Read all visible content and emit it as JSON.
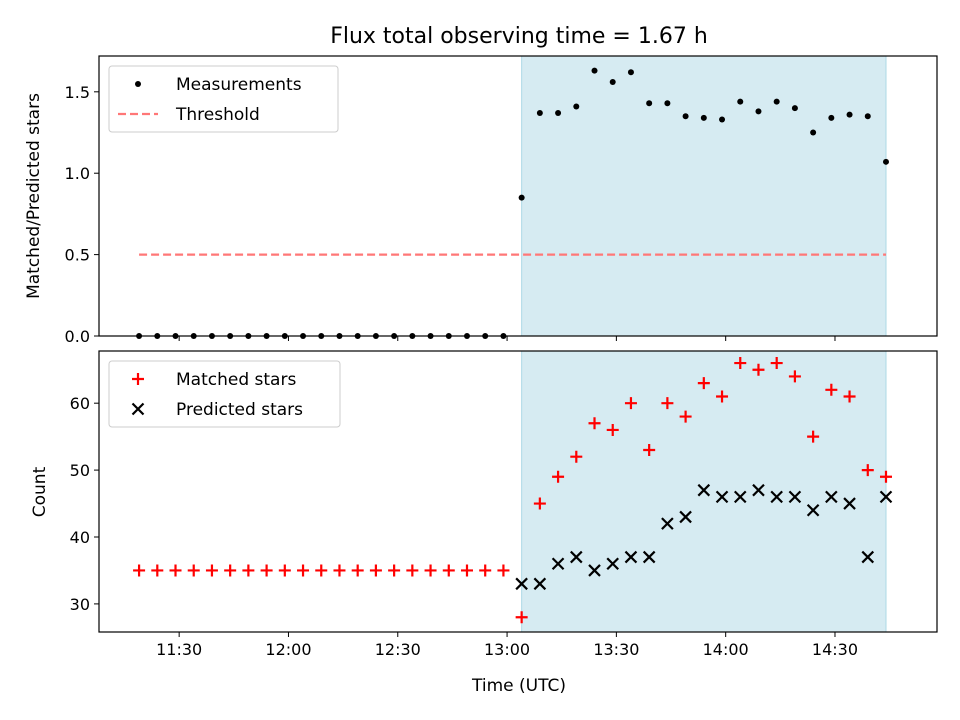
{
  "chart_data": [
    {
      "type": "scatter",
      "title": "Flux total observing time = 1.67 h",
      "xlabel": "",
      "ylabel": "Matched/Predicted stars",
      "x_ticks": [
        "11:30",
        "12:00",
        "12:30",
        "13:00",
        "13:30",
        "14:00",
        "14:30"
      ],
      "x_range": [
        "11:08",
        "14:58"
      ],
      "ylim": [
        0,
        1.72
      ],
      "y_ticks": [
        "0.0",
        "0.5",
        "1.0",
        "1.5"
      ],
      "legend_position": "top-left",
      "highlight_span": {
        "start": "13:04",
        "end": "14:44",
        "color": "#add8e6"
      },
      "x": [
        "11:19",
        "11:24",
        "11:29",
        "11:34",
        "11:39",
        "11:44",
        "11:49",
        "11:54",
        "11:59",
        "12:04",
        "12:09",
        "12:14",
        "12:19",
        "12:24",
        "12:29",
        "12:34",
        "12:39",
        "12:44",
        "12:49",
        "12:54",
        "12:59",
        "13:04",
        "13:09",
        "13:14",
        "13:19",
        "13:24",
        "13:29",
        "13:34",
        "13:39",
        "13:44",
        "13:49",
        "13:54",
        "13:59",
        "14:04",
        "14:09",
        "14:14",
        "14:19",
        "14:24",
        "14:29",
        "14:34",
        "14:39",
        "14:44"
      ],
      "series": [
        {
          "name": "Measurements",
          "marker": "dot",
          "color": "#000000",
          "values": [
            0,
            0,
            0,
            0,
            0,
            0,
            0,
            0,
            0,
            0,
            0,
            0,
            0,
            0,
            0,
            0,
            0,
            0,
            0,
            0,
            0,
            0.85,
            1.37,
            1.37,
            1.41,
            1.63,
            1.56,
            1.62,
            1.43,
            1.43,
            1.35,
            1.34,
            1.33,
            1.44,
            1.38,
            1.44,
            1.4,
            1.25,
            1.34,
            1.36,
            1.35,
            1.07
          ]
        },
        {
          "name": "Threshold",
          "marker": "dashed-line",
          "color": "#ff7777",
          "line_x": [
            "11:19",
            "14:44"
          ],
          "value": 0.5
        }
      ]
    },
    {
      "type": "scatter",
      "title": "",
      "xlabel": "Time (UTC)",
      "ylabel": "Count",
      "x_ticks": [
        "11:30",
        "12:00",
        "12:30",
        "13:00",
        "13:30",
        "14:00",
        "14:30"
      ],
      "x_range": [
        "11:08",
        "14:58"
      ],
      "ylim": [
        25.8,
        67.8
      ],
      "y_ticks": [
        "30",
        "40",
        "50",
        "60"
      ],
      "legend_position": "top-left",
      "highlight_span": {
        "start": "13:04",
        "end": "14:44",
        "color": "#add8e6"
      },
      "x": [
        "11:19",
        "11:24",
        "11:29",
        "11:34",
        "11:39",
        "11:44",
        "11:49",
        "11:54",
        "11:59",
        "12:04",
        "12:09",
        "12:14",
        "12:19",
        "12:24",
        "12:29",
        "12:34",
        "12:39",
        "12:44",
        "12:49",
        "12:54",
        "12:59",
        "13:04",
        "13:09",
        "13:14",
        "13:19",
        "13:24",
        "13:29",
        "13:34",
        "13:39",
        "13:44",
        "13:49",
        "13:54",
        "13:59",
        "14:04",
        "14:09",
        "14:14",
        "14:19",
        "14:24",
        "14:29",
        "14:34",
        "14:39",
        "14:44"
      ],
      "series": [
        {
          "name": "Matched stars",
          "marker": "plus",
          "color": "#ff0000",
          "values": [
            35,
            35,
            35,
            35,
            35,
            35,
            35,
            35,
            35,
            35,
            35,
            35,
            35,
            35,
            35,
            35,
            35,
            35,
            35,
            35,
            35,
            28,
            45,
            49,
            52,
            57,
            56,
            60,
            53,
            60,
            58,
            63,
            61,
            66,
            65,
            66,
            64,
            55,
            62,
            61,
            50,
            49
          ]
        },
        {
          "name": "Predicted stars",
          "marker": "x",
          "color": "#000000",
          "values": [
            null,
            null,
            null,
            null,
            null,
            null,
            null,
            null,
            null,
            null,
            null,
            null,
            null,
            null,
            null,
            null,
            null,
            null,
            null,
            null,
            null,
            33,
            33,
            36,
            37,
            35,
            36,
            37,
            37,
            42,
            43,
            47,
            46,
            46,
            47,
            46,
            46,
            44,
            46,
            45,
            37,
            46
          ]
        }
      ]
    }
  ]
}
